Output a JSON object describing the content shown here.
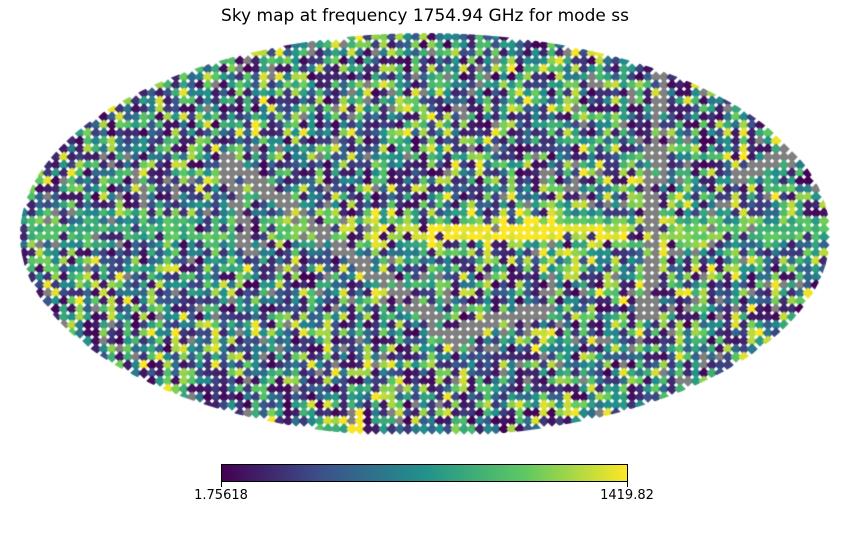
{
  "chart_data": {
    "type": "heatmap",
    "projection": "mollweide",
    "title": "Sky map at frequency 1754.94 GHz for mode ss",
    "colormap": "viridis",
    "colormap_stops": [
      "#440154",
      "#3b528b",
      "#21918c",
      "#5ec962",
      "#fde725"
    ],
    "masked_color": "#808080",
    "value_range": [
      1.75618,
      1419.82
    ],
    "colorbar": {
      "min_label": "1.75618",
      "max_label": "1419.82",
      "orientation": "horizontal",
      "placement": "bottom"
    },
    "features": {
      "galactic_plane": "bright band along the equator, saturated near the center",
      "masked_strips": "grey scan stripes crossing the map diagonally and near the right edge"
    }
  }
}
